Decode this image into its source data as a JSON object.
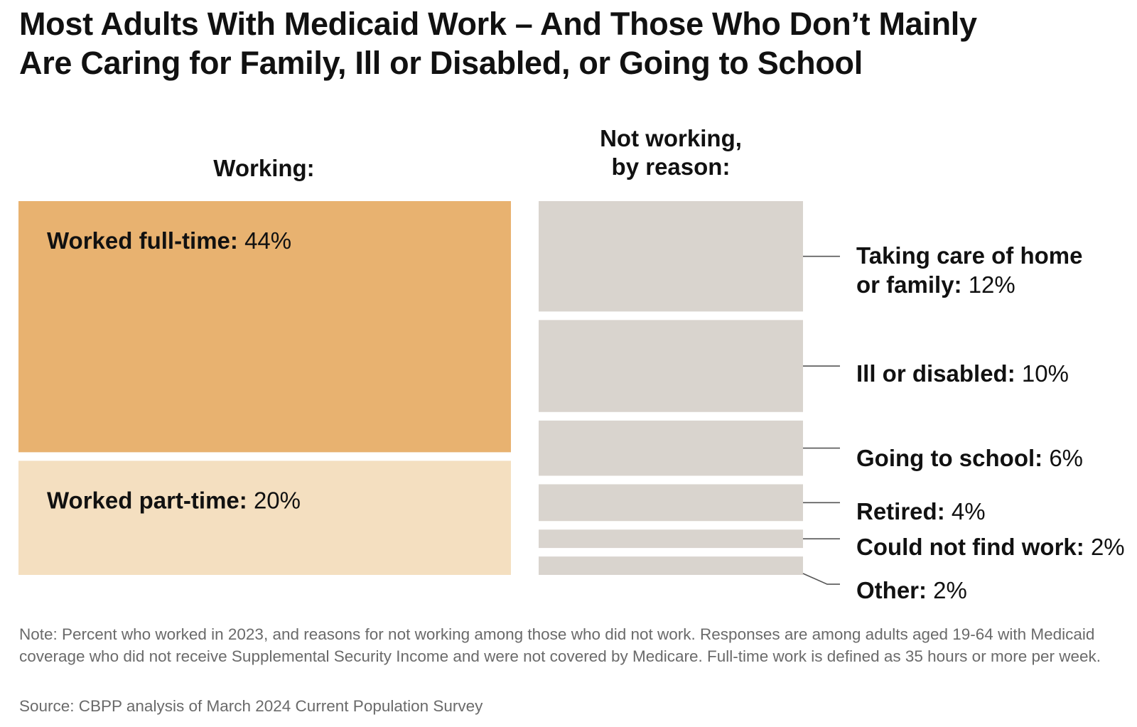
{
  "title_line1": "Most Adults With Medicaid Work – And Those Who Don’t Mainly",
  "title_line2": "Are Caring for Family, Ill or Disabled, or Going to School",
  "chart_data": {
    "type": "bar",
    "columns": [
      {
        "heading_lines": [
          "Working:"
        ],
        "fill_colors": [
          "#e8b270",
          "#f4dfc0"
        ],
        "segments": [
          {
            "label": "Worked full-time:",
            "value_text": "44%",
            "value": 44
          },
          {
            "label": "Worked part-time:",
            "value_text": "20%",
            "value": 20
          }
        ]
      },
      {
        "heading_lines": [
          "Not working,",
          "by reason:"
        ],
        "fill_color": "#d9d4ce",
        "segments": [
          {
            "label_lines": [
              "Taking care of home",
              "or family:"
            ],
            "value_text": "12%",
            "value": 12
          },
          {
            "label_lines": [
              "Ill or disabled:"
            ],
            "value_text": "10%",
            "value": 10
          },
          {
            "label_lines": [
              "Going to school:"
            ],
            "value_text": "6%",
            "value": 6
          },
          {
            "label_lines": [
              "Retired:"
            ],
            "value_text": "4%",
            "value": 4
          },
          {
            "label_lines": [
              "Could not find work:"
            ],
            "value_text": "2%",
            "value": 2
          },
          {
            "label_lines": [
              "Other:"
            ],
            "value_text": "2%",
            "value": 2
          }
        ]
      }
    ]
  },
  "note": "Note: Percent who worked in 2023, and reasons for not working among those who did not work. Responses are among adults aged 19-64 with Medicaid coverage who did not receive Supplemental Security Income and were not covered by Medicare. Full-time work is defined as 35 hours or more per week.",
  "source": "Source: CBPP analysis of March 2024 Current Population Survey"
}
